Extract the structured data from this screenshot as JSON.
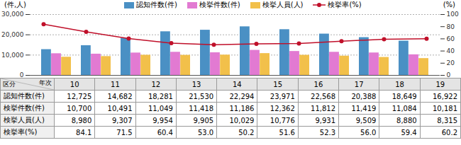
{
  "chart_data": {
    "type": "bar",
    "ylabel": "(件,人)",
    "y2label": "(%)",
    "categories": [
      "10",
      "11",
      "12",
      "13",
      "14",
      "15",
      "16",
      "17",
      "18",
      "19"
    ],
    "series": [
      {
        "name": "認知件数(件)",
        "color": "#4a90c4",
        "type": "bar",
        "values": [
          12725,
          14682,
          18281,
          21530,
          22294,
          23971,
          22568,
          20388,
          18649,
          16922
        ]
      },
      {
        "name": "検挙件数(件)",
        "color": "#e27ad2",
        "type": "bar",
        "values": [
          10700,
          10491,
          11049,
          11418,
          11186,
          12362,
          11812,
          11419,
          11084,
          10181
        ]
      },
      {
        "name": "検挙人員(人)",
        "color": "#f2c04a",
        "type": "bar",
        "values": [
          8980,
          9307,
          9954,
          9905,
          10029,
          10776,
          9931,
          9509,
          8880,
          8315
        ]
      },
      {
        "name": "検挙率(%)",
        "color": "#c0102a",
        "type": "line",
        "marker": "circle",
        "axis": "y2",
        "values": [
          84.1,
          71.5,
          60.4,
          53.0,
          50.2,
          51.6,
          52.3,
          56.0,
          59.4,
          60.2
        ]
      }
    ],
    "ylim": [
      0,
      30000
    ],
    "yticks": [
      0,
      {
        "value": 10000,
        "label": "10,000"
      },
      {
        "value": 20000,
        "label": "20,000"
      },
      {
        "value": 30000,
        "label": "30,000"
      }
    ],
    "y2lim": [
      0,
      100
    ],
    "y2ticks": [
      0,
      20,
      40,
      60,
      80,
      100
    ],
    "grid": true,
    "legend": "top",
    "tick_labels": "y"
  },
  "table": {
    "corner": {
      "left": "区分",
      "right": "年次"
    },
    "columns": [
      "10",
      "11",
      "12",
      "13",
      "14",
      "15",
      "16",
      "17",
      "18",
      "19"
    ],
    "rows": [
      {
        "label": "認知件数(件)",
        "cells": [
          "12,725",
          "14,682",
          "18,281",
          "21,530",
          "22,294",
          "23,971",
          "22,568",
          "20,388",
          "18,649",
          "16,922"
        ]
      },
      {
        "label": "検挙件数(件)",
        "cells": [
          "10,700",
          "10,491",
          "11,049",
          "11,418",
          "11,186",
          "12,362",
          "11,812",
          "11,419",
          "11,084",
          "10,181"
        ]
      },
      {
        "label": "検挙人員(人)",
        "cells": [
          "8,980",
          "9,307",
          "9,954",
          "9,905",
          "10,029",
          "10,776",
          "9,931",
          "9,509",
          "8,880",
          "8,315"
        ]
      },
      {
        "label": "検挙率(%)",
        "cells": [
          "84.1",
          "71.5",
          "60.4",
          "53.0",
          "50.2",
          "51.6",
          "52.3",
          "56.0",
          "59.4",
          "60.2"
        ]
      }
    ]
  }
}
